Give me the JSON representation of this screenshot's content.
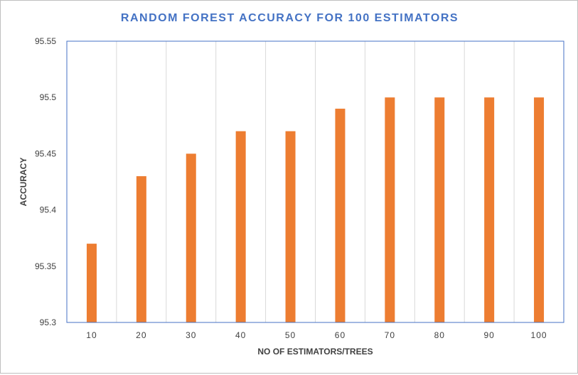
{
  "chart_data": {
    "type": "bar",
    "title": "RANDOM FOREST ACCURACY FOR 100 ESTIMATORS",
    "xlabel": "NO OF ESTIMATORS/TREES",
    "ylabel": "ACCURACY",
    "categories": [
      "10",
      "20",
      "30",
      "40",
      "50",
      "60",
      "70",
      "80",
      "90",
      "100"
    ],
    "values": [
      95.37,
      95.43,
      95.45,
      95.47,
      95.47,
      95.49,
      95.5,
      95.5,
      95.5,
      95.5
    ],
    "ylim": [
      95.3,
      95.55
    ],
    "yticks": [
      "95.3",
      "95.35",
      "95.4",
      "95.45",
      "95.5",
      "95.55"
    ],
    "grid": "vertical",
    "legend": "none",
    "colors": {
      "bar": "#ed7d31",
      "title": "#4472c4",
      "plot_border": "#4472c4",
      "grid": "#d9d9d9"
    }
  }
}
